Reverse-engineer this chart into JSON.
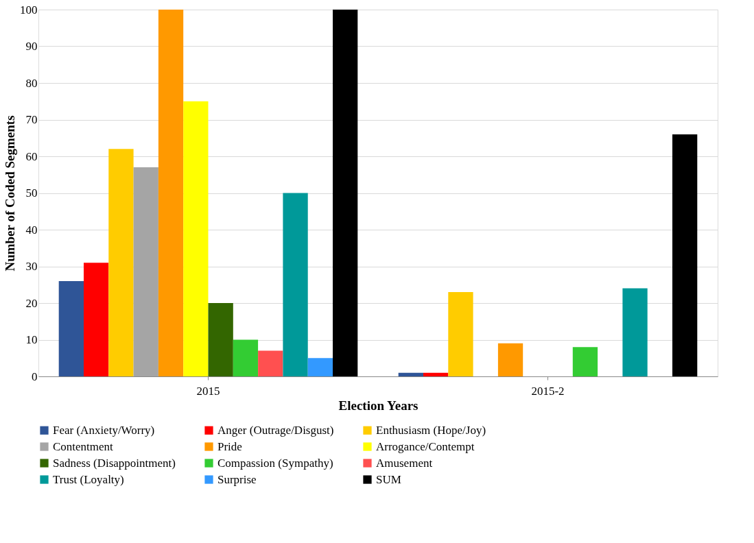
{
  "chart_data": {
    "type": "bar",
    "xlabel": "Election Years",
    "ylabel": "Number of Coded Segments",
    "categories": [
      "2015",
      "2015-2"
    ],
    "series": [
      {
        "name": "Fear (Anxiety/Worry)",
        "color": "#2f5597",
        "values": [
          26,
          1
        ]
      },
      {
        "name": "Anger (Outrage/Disgust)",
        "color": "#ff0000",
        "values": [
          31,
          1
        ]
      },
      {
        "name": "Enthusiasm (Hope/Joy)",
        "color": "#ffcc00",
        "values": [
          62,
          23
        ]
      },
      {
        "name": "Contentment",
        "color": "#a5a5a5",
        "values": [
          57,
          0
        ]
      },
      {
        "name": "Pride",
        "color": "#ff9900",
        "values": [
          100,
          9
        ]
      },
      {
        "name": "Arrogance/Contempt",
        "color": "#ffff00",
        "values": [
          75,
          0
        ]
      },
      {
        "name": "Sadness (Disappointment)",
        "color": "#336600",
        "values": [
          20,
          0
        ]
      },
      {
        "name": "Compassion (Sympathy)",
        "color": "#33cc33",
        "values": [
          10,
          8
        ]
      },
      {
        "name": "Amusement",
        "color": "#ff5050",
        "values": [
          7,
          0
        ]
      },
      {
        "name": "Trust (Loyalty)",
        "color": "#009999",
        "values": [
          50,
          24
        ]
      },
      {
        "name": "Surprise",
        "color": "#3399ff",
        "values": [
          5,
          0
        ]
      },
      {
        "name": "SUM",
        "color": "#000000",
        "values": [
          100,
          66
        ]
      }
    ],
    "ylim": [
      0,
      100
    ],
    "yticks": [
      0,
      10,
      20,
      30,
      40,
      50,
      60,
      70,
      80,
      90,
      100
    ],
    "grid": "y",
    "legend": "bottom"
  }
}
